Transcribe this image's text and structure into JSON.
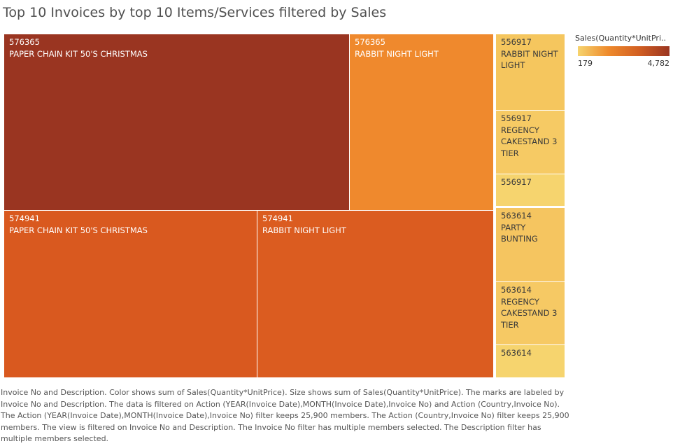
{
  "title": "Top 10 Invoices by top 10 Items/Services filtered by Sales",
  "legend": {
    "title": "Sales(Quantity*UnitPri..",
    "min_label": "179",
    "max_label": "4,782",
    "colors": [
      "#F6D46E",
      "#EE8A2C",
      "#D25F22",
      "#9A3521"
    ]
  },
  "caption": "Invoice No and Description.  Color shows sum of Sales(Quantity*UnitPrice).  Size shows sum of Sales(Quantity*UnitPrice).  The marks are labeled by Invoice No and Description. The data is filtered on Action (YEAR(Invoice Date),MONTH(Invoice Date),Invoice No) and Action (Country,Invoice No). The Action (YEAR(Invoice Date),MONTH(Invoice Date),Invoice No) filter keeps 25,900 members. The Action (Country,Invoice No) filter keeps 25,900 members. The view is filtered on Invoice No and Description. The Invoice No filter has multiple members selected. The Description filter has multiple members selected.",
  "chart_data": {
    "type": "treemap",
    "title": "Top 10 Invoices by top 10 Items/Services filtered by Sales",
    "color_measure": "Sales(Quantity*UnitPri..",
    "color_range": [
      179,
      4782
    ],
    "tiles": [
      {
        "invoice": "576365",
        "description": "PAPER CHAIN KIT 50'S CHRISTMAS",
        "sales": 4782,
        "color": "#9A3521",
        "text_color": "#ffffff"
      },
      {
        "invoice": "576365",
        "description": "RABBIT NIGHT LIGHT",
        "sales": 2000,
        "color": "#EF892D",
        "text_color": "#ffffff"
      },
      {
        "invoice": "574941",
        "description": "PAPER CHAIN KIT 50'S CHRISTMAS",
        "sales": 3360,
        "color": "#D9591F",
        "text_color": "#ffffff"
      },
      {
        "invoice": "574941",
        "description": "RABBIT NIGHT LIGHT",
        "sales": 3120,
        "color": "#DB5C20",
        "text_color": "#ffffff"
      },
      {
        "invoice": "556917",
        "description": "RABBIT NIGHT LIGHT",
        "sales": 380,
        "color": "#F5C65E",
        "text_color": "#3a3a3a"
      },
      {
        "invoice": "556917",
        "description": "REGENCY CAKESTAND 3 TIER",
        "sales": 320,
        "color": "#F6CA64",
        "text_color": "#3a3a3a"
      },
      {
        "invoice": "556917",
        "description": "",
        "sales": 179,
        "color": "#F6D46E",
        "text_color": "#3a3a3a"
      },
      {
        "invoice": "563614",
        "description": "PARTY BUNTING",
        "sales": 370,
        "color": "#F5C560",
        "text_color": "#3a3a3a"
      },
      {
        "invoice": "563614",
        "description": "REGENCY CAKESTAND 3 TIER",
        "sales": 315,
        "color": "#F6C964",
        "text_color": "#3a3a3a"
      },
      {
        "invoice": "563614",
        "description": "",
        "sales": 185,
        "color": "#F6D46E",
        "text_color": "#3a3a3a"
      }
    ]
  }
}
